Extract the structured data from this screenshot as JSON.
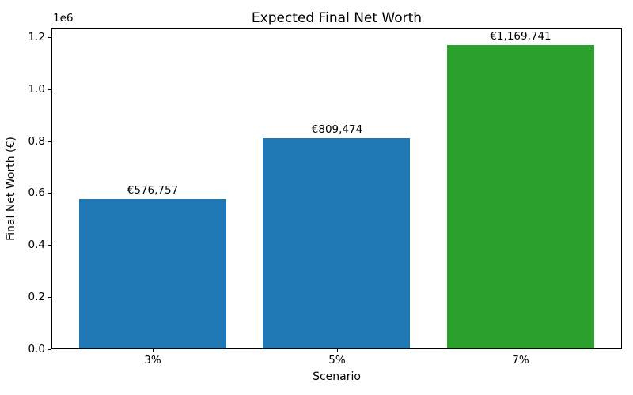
{
  "chart_data": {
    "type": "bar",
    "title": "Expected Final Net Worth",
    "xlabel": "Scenario",
    "ylabel": "Final Net Worth (€)",
    "categories": [
      "3%",
      "5%",
      "7%"
    ],
    "values": [
      576757,
      809474,
      1169741
    ],
    "bar_labels": [
      "€576,757",
      "€809,474",
      "€1,169,741"
    ],
    "bar_colors": [
      "#1f77b4",
      "#1f77b4",
      "#2ca02c"
    ],
    "ylim": [
      0,
      1233000
    ],
    "yticks": [
      0,
      200000,
      400000,
      600000,
      800000,
      1000000,
      1200000
    ],
    "ytick_labels": [
      "0.0",
      "0.2",
      "0.4",
      "0.6",
      "0.8",
      "1.0",
      "1.2"
    ],
    "y_offset_text": "1e6",
    "grid": false,
    "legend": null,
    "bar_width_fraction": 0.8,
    "x_margin": 0.55
  }
}
